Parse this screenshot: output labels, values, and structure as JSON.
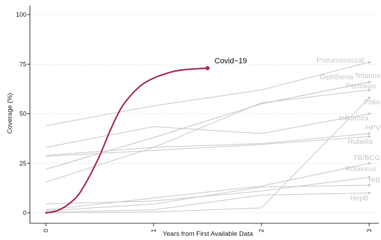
{
  "chart_data": {
    "type": "line",
    "title": "",
    "xlabel": "Years from First Available Data",
    "ylabel": "Coverage (%)",
    "xlim": [
      0,
      3
    ],
    "ylim": [
      0,
      100
    ],
    "x_ticks": [
      0,
      1,
      2,
      3
    ],
    "x_tick_labels": [
      "0",
      "1",
      "2",
      "3"
    ],
    "y_ticks": [
      0,
      25,
      50,
      75,
      100
    ],
    "y_tick_labels": [
      "0",
      "25",
      "50",
      "75",
      "100"
    ],
    "grid": "horizontal dotted",
    "legend": "none (series labeled directly on the plot)",
    "colors": {
      "highlight": "#a8315a",
      "other": "#c8c8c8",
      "other_label": "#c7c7c7"
    },
    "series": [
      {
        "name": "Covid−19",
        "highlight": true,
        "x": [
          0,
          0.1,
          0.2,
          0.3,
          0.4,
          0.5,
          0.6,
          0.7,
          0.8,
          0.9,
          1.0,
          1.1,
          1.2,
          1.3,
          1.4,
          1.5
        ],
        "y": [
          0,
          1,
          4,
          9,
          18,
          29,
          42,
          53,
          60,
          65,
          68,
          70,
          71.5,
          72.3,
          72.7,
          73
        ]
      },
      {
        "name": "Pneumococcal",
        "x": [
          0,
          1,
          2,
          3
        ],
        "y": [
          44,
          54,
          62,
          76
        ]
      },
      {
        "name": "Diphtheria",
        "x": [
          0,
          1,
          2,
          3
        ],
        "y": [
          22,
          38,
          55,
          66
        ]
      },
      {
        "name": "Tetanus",
        "x": [
          0,
          1,
          2,
          3
        ],
        "y": [
          22,
          38,
          55,
          66
        ]
      },
      {
        "name": "Pertussis",
        "x": [
          0,
          1,
          2,
          3
        ],
        "y": [
          15.5,
          33,
          55.5,
          62
        ]
      },
      {
        "name": "Polio",
        "x": [
          0,
          1,
          2,
          3
        ],
        "y": [
          33,
          43.5,
          40,
          50
        ]
      },
      {
        "name": "Influenza",
        "x": [
          0,
          1,
          2,
          3
        ],
        "y": [
          29,
          33,
          35,
          40
        ]
      },
      {
        "name": "HPV",
        "x": [
          0,
          1,
          2,
          3
        ],
        "y": [
          28.5,
          31.5,
          34.5,
          38.5
        ]
      },
      {
        "name": "Rubella",
        "x": [
          0,
          1,
          2,
          3
        ],
        "y": [
          1.5,
          7.5,
          13.5,
          25
        ]
      },
      {
        "name": "TB/BCG",
        "x": [
          0,
          1,
          2,
          3
        ],
        "y": [
          4.5,
          6,
          11,
          18
        ]
      },
      {
        "name": "Rotavirus",
        "x": [
          0,
          1,
          2,
          3
        ],
        "y": [
          1,
          4.5,
          13,
          14
        ]
      },
      {
        "name": "HiB",
        "x": [
          0,
          1,
          2,
          3
        ],
        "y": [
          0.5,
          1.5,
          9,
          10
        ]
      },
      {
        "name": "HepB",
        "x": [
          0,
          1,
          2,
          3
        ],
        "y": [
          0,
          0.5,
          2.5,
          58
        ]
      }
    ],
    "labels": {
      "Covid−19": "Covid−19",
      "Pneumococcal": "Pneumococcal",
      "Diphtheria": "Diphtheria",
      "Tetanus": "Tetanus",
      "Pertussis": "Pertussis",
      "Polio": "Polio",
      "Influenza": "Influenza",
      "HPV": "HPV",
      "Rubella": "Rubella",
      "TB/BCG": "TB/BCG",
      "Rotavirus": "Rotavirus",
      "HiB": "HiB",
      "HepB": "HepB"
    }
  }
}
